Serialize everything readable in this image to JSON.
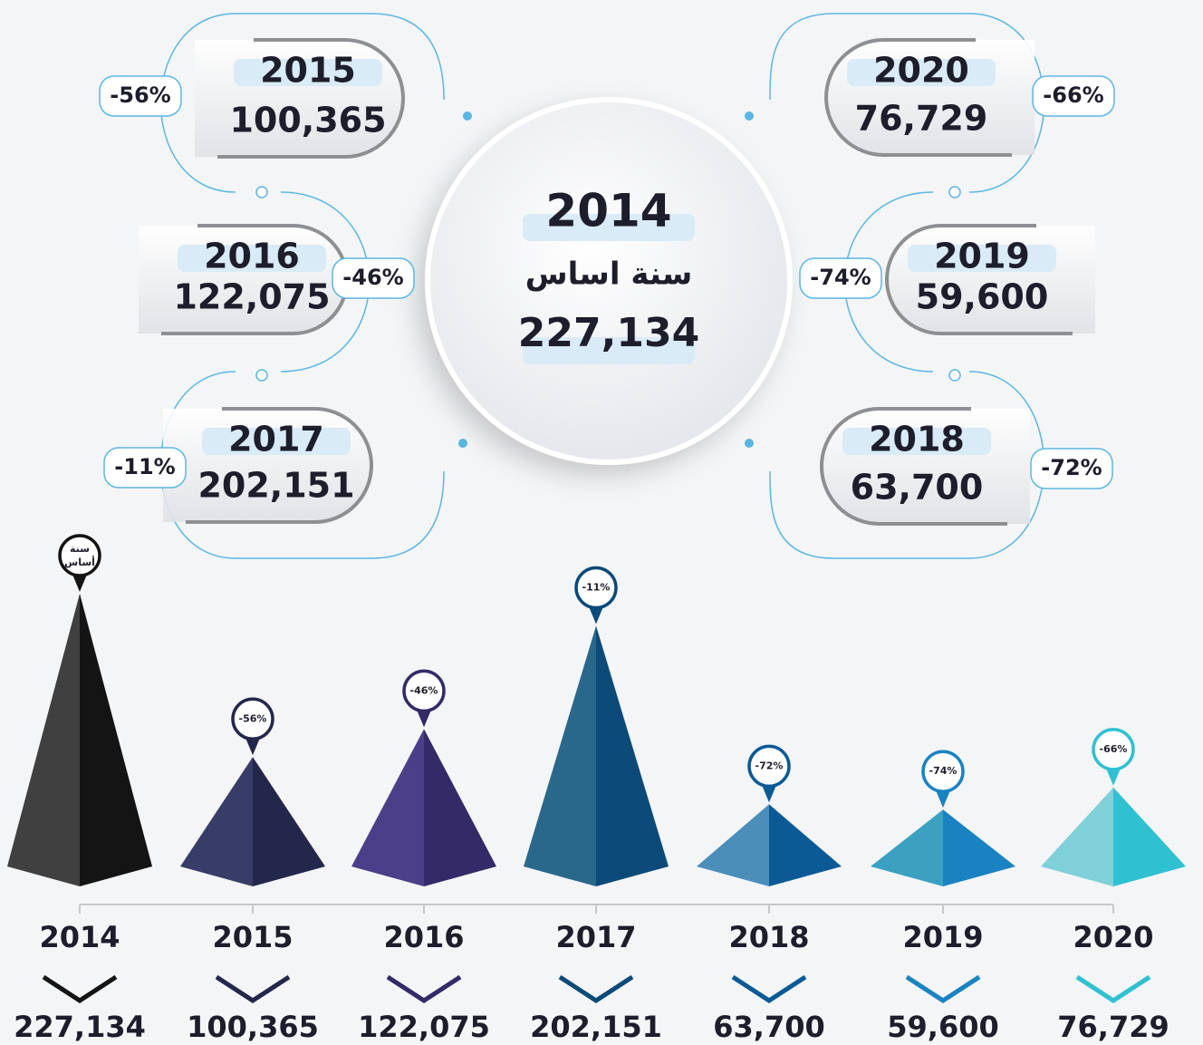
{
  "chart_data": {
    "type": "pyramid",
    "categories": [
      "2014",
      "2015",
      "2016",
      "2017",
      "2018",
      "2019",
      "2020"
    ],
    "values": [
      227134,
      100365,
      122075,
      202151,
      63700,
      59600,
      76729
    ],
    "value_labels": [
      "227,134",
      "100,365",
      "122,075",
      "202,151",
      "63,700",
      "59,600",
      "76,729"
    ],
    "changes": [
      null,
      -56,
      -46,
      -11,
      -72,
      -74,
      -66
    ],
    "change_labels": [
      null,
      "-56%",
      "-46%",
      "-11%",
      "-72%",
      "-74%",
      "-66%"
    ],
    "base_label": "سنة اساس",
    "pin_label": [
      "سنة",
      "أساس"
    ],
    "colors": [
      [
        "#404040",
        "#141414"
      ],
      [
        "#383d68",
        "#23274b"
      ],
      [
        "#4c3f89",
        "#332a67"
      ],
      [
        "#2a688b",
        "#0b4a79"
      ],
      [
        "#4b8eba",
        "#0b5a95"
      ],
      [
        "#3ca1c1",
        "#1a82c1"
      ],
      [
        "#80d0d9",
        "#2fc0d1"
      ]
    ]
  }
}
